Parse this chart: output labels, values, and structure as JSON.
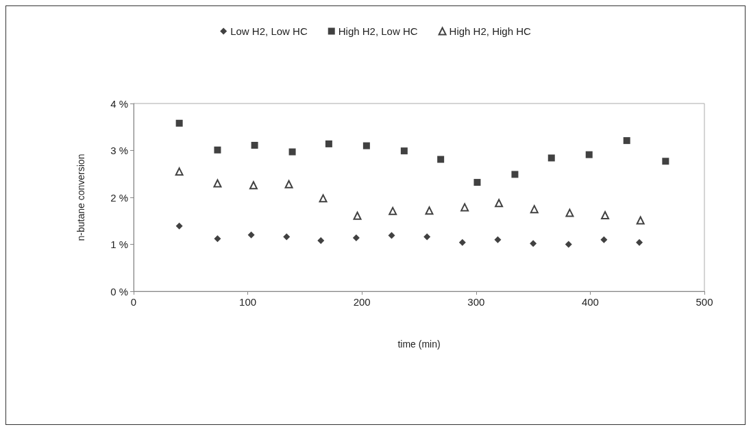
{
  "chart_data": {
    "type": "scatter",
    "xlabel": "time (min)",
    "ylabel": "n-butane conversion",
    "xlim": [
      0,
      500
    ],
    "xticks": [
      0,
      100,
      200,
      300,
      400,
      500
    ],
    "ylim": [
      0,
      4
    ],
    "yticks": [
      {
        "value": 0,
        "label": "0 %"
      },
      {
        "value": 1,
        "label": "1 %"
      },
      {
        "value": 2,
        "label": "2 %"
      },
      {
        "value": 3,
        "label": "3 %"
      },
      {
        "value": 4,
        "label": "4 %"
      }
    ],
    "grid": false,
    "legend": "top",
    "series": [
      {
        "name": "Low H2, Low HC",
        "color": "#111111",
        "marker": "diamond",
        "x": [
          40,
          73.5,
          103,
          134,
          164,
          195,
          226,
          257,
          288,
          319,
          350,
          381,
          412,
          443
        ],
        "values": [
          1.39,
          1.12,
          1.2,
          1.16,
          1.08,
          1.14,
          1.19,
          1.16,
          1.04,
          1.1,
          1.02,
          1.0,
          1.1,
          1.04
        ]
      },
      {
        "name": "High H2, Low HC",
        "color": "#111111",
        "marker": "square",
        "x": [
          40,
          73.5,
          106,
          139,
          171,
          204,
          237,
          269,
          301,
          334,
          366,
          399,
          432,
          466
        ],
        "values": [
          3.58,
          3.01,
          3.11,
          2.97,
          3.14,
          3.1,
          2.99,
          2.81,
          2.32,
          2.49,
          2.84,
          2.91,
          3.21,
          2.77
        ]
      },
      {
        "name": "High H2, High HC",
        "color": "#111111",
        "marker": "triangle",
        "x": [
          40,
          73.5,
          105,
          136,
          166,
          196,
          227,
          259,
          290,
          320,
          351,
          382,
          413,
          444
        ],
        "values": [
          2.55,
          2.3,
          2.26,
          2.28,
          1.98,
          1.61,
          1.71,
          1.72,
          1.79,
          1.88,
          1.75,
          1.67,
          1.62,
          1.51
        ]
      }
    ]
  }
}
